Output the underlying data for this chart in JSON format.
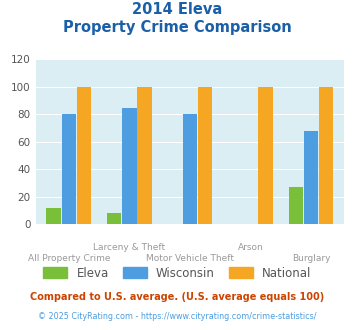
{
  "title_line1": "2014 Eleva",
  "title_line2": "Property Crime Comparison",
  "categories": [
    "All Property Crime",
    "Larceny & Theft",
    "Motor Vehicle Theft",
    "Arson",
    "Burglary"
  ],
  "category_labels_line1": [
    "",
    "Larceny & Theft",
    "",
    "Arson",
    ""
  ],
  "category_labels_line2": [
    "All Property Crime",
    "",
    "Motor Vehicle Theft",
    "",
    "Burglary"
  ],
  "eleva": [
    12,
    8,
    0,
    0,
    27
  ],
  "wisconsin": [
    80,
    85,
    80,
    0,
    68
  ],
  "national": [
    100,
    100,
    100,
    100,
    100
  ],
  "eleva_color": "#7abf3a",
  "wisconsin_color": "#4d9de0",
  "national_color": "#f5a623",
  "bg_color": "#daeef3",
  "title_color": "#1a5fa8",
  "xlabel_color": "#999999",
  "ylim": [
    0,
    120
  ],
  "yticks": [
    0,
    20,
    40,
    60,
    80,
    100,
    120
  ],
  "footnote1": "Compared to U.S. average. (U.S. average equals 100)",
  "footnote2": "© 2025 CityRating.com - https://www.cityrating.com/crime-statistics/",
  "footnote1_color": "#cc4400",
  "footnote2_color": "#4d9de0",
  "legend_text_color": "#555555"
}
